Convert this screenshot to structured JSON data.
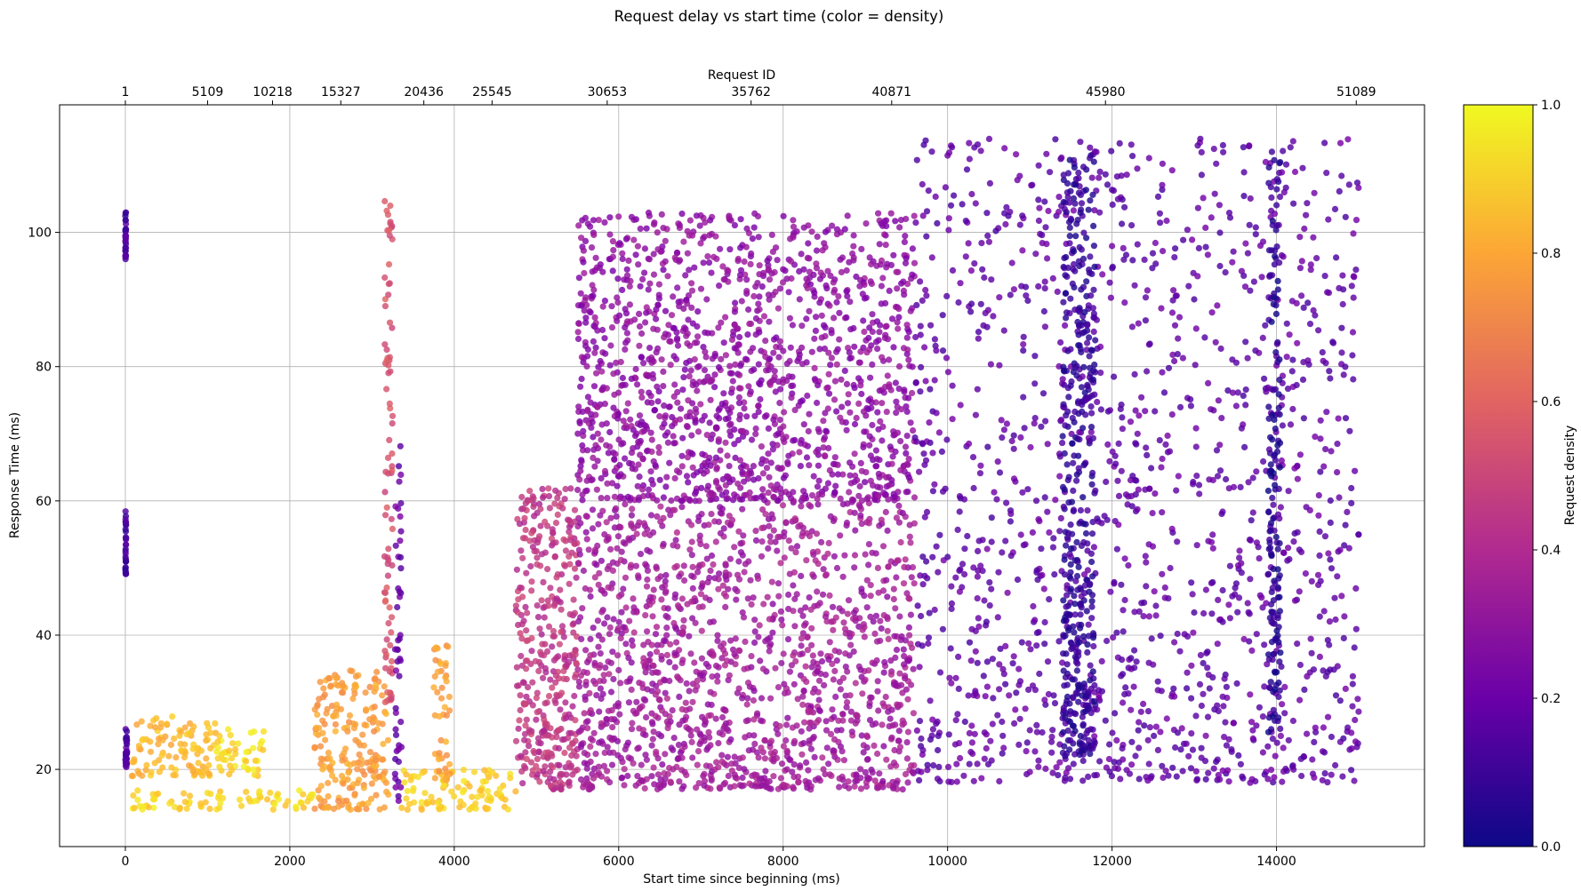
{
  "chart_data": {
    "type": "scatter",
    "title": "Request delay vs start time (color = density)",
    "xlabel": "Start time since beginning (ms)",
    "ylabel": "Response Time (ms)",
    "top_xlabel": "Request ID",
    "colorbar_label": "Request density",
    "colormap": "plasma",
    "grid": true,
    "xlim": [
      -800,
      15800
    ],
    "ylim": [
      8.5,
      119
    ],
    "x_ticks": [
      "0",
      "2000",
      "4000",
      "6000",
      "8000",
      "10000",
      "12000",
      "14000"
    ],
    "y_ticks": [
      "20",
      "40",
      "60",
      "80",
      "100"
    ],
    "top_ticks": [
      {
        "x": 0,
        "label": "1"
      },
      {
        "x": 1000,
        "label": "5109"
      },
      {
        "x": 1790,
        "label": "10218"
      },
      {
        "x": 2620,
        "label": "15327"
      },
      {
        "x": 3630,
        "label": "20436"
      },
      {
        "x": 4460,
        "label": "25545"
      },
      {
        "x": 5860,
        "label": "30653"
      },
      {
        "x": 7610,
        "label": "35762"
      },
      {
        "x": 9320,
        "label": "40871"
      },
      {
        "x": 11920,
        "label": "45980"
      },
      {
        "x": 14970,
        "label": "51089"
      }
    ],
    "colorbar_range": [
      0.0,
      1.0
    ],
    "colorbar_ticks": [
      "0.0",
      "0.2",
      "0.4",
      "0.6",
      "0.8",
      "1.0"
    ],
    "segments": [
      {
        "x_range": [
          0,
          20
        ],
        "y_range": [
          20,
          27
        ],
        "density": 0.15
      },
      {
        "x_range": [
          0,
          8
        ],
        "y_range": [
          96,
          103
        ],
        "density": 0.12
      },
      {
        "x_range": [
          0,
          8
        ],
        "y_range": [
          49,
          59
        ],
        "density": 0.12
      },
      {
        "x_range": [
          80,
          2300
        ],
        "y_range": [
          14,
          17
        ],
        "density": 0.92
      },
      {
        "x_range": [
          80,
          1100
        ],
        "y_range": [
          19,
          28
        ],
        "density": 0.85
      },
      {
        "x_range": [
          1100,
          1700
        ],
        "y_range": [
          19,
          26
        ],
        "density": 0.93
      },
      {
        "x_range": [
          2300,
          3200
        ],
        "y_range": [
          14,
          35
        ],
        "density": 0.78
      },
      {
        "x_range": [
          3150,
          3250
        ],
        "y_range": [
          30,
          106
        ],
        "density": 0.55
      },
      {
        "x_range": [
          3280,
          3360
        ],
        "y_range": [
          15,
          69
        ],
        "density": 0.2
      },
      {
        "x_range": [
          3350,
          4750
        ],
        "y_range": [
          14,
          20
        ],
        "density": 0.9
      },
      {
        "x_range": [
          3750,
          3950
        ],
        "y_range": [
          18,
          39
        ],
        "density": 0.78
      },
      {
        "x_range": [
          4750,
          5500
        ],
        "y_range": [
          17,
          62
        ],
        "density": 0.45
      },
      {
        "x_range": [
          5500,
          9600
        ],
        "y_range": [
          17,
          60
        ],
        "density": 0.35
      },
      {
        "x_range": [
          5500,
          9600
        ],
        "y_range": [
          60,
          103
        ],
        "density": 0.3
      },
      {
        "x_range": [
          9600,
          15000
        ],
        "y_range": [
          18,
          114
        ],
        "density": 0.18
      },
      {
        "x_range": [
          11400,
          11800
        ],
        "y_range": [
          22,
          112
        ],
        "density": 0.08
      },
      {
        "x_range": [
          13900,
          14050
        ],
        "y_range": [
          25,
          112
        ],
        "density": 0.06
      }
    ]
  }
}
